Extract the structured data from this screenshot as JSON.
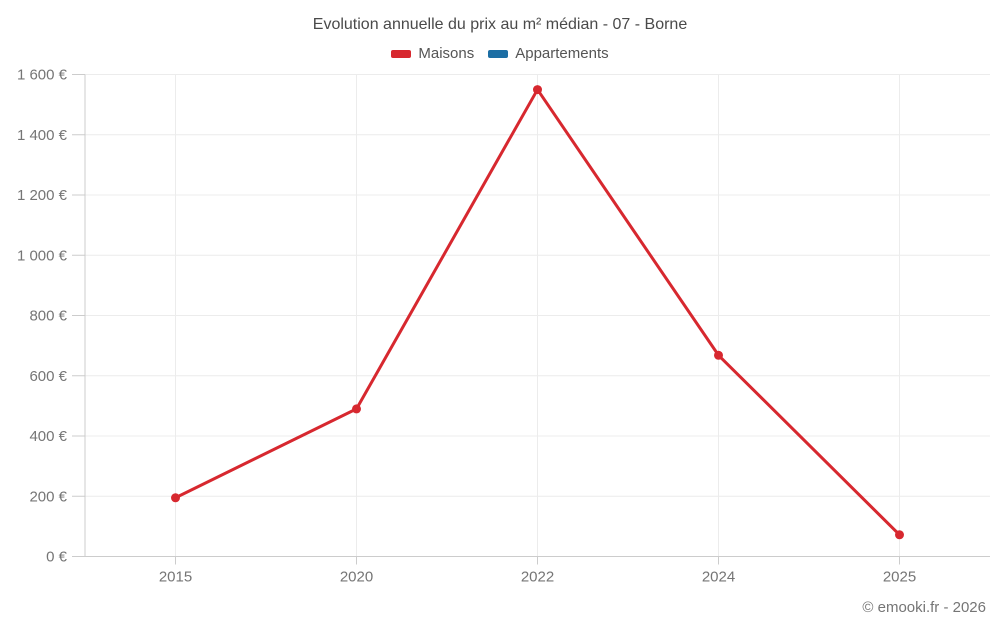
{
  "title": "Evolution annuelle du prix au m² médian - 07 - Borne",
  "legend": {
    "items": [
      {
        "label": "Maisons",
        "color": "#d7282f"
      },
      {
        "label": "Appartements",
        "color": "#1c6ea4"
      }
    ]
  },
  "copyright": "© emooki.fr - 2026",
  "colors": {
    "background": "#ffffff",
    "grid": "#ececec",
    "axis": "#cccccc",
    "tick_label": "#757575",
    "title": "#4a4a4a"
  },
  "chart_data": {
    "type": "line",
    "title": "Evolution annuelle du prix au m² médian - 07 - Borne",
    "categories": [
      "2015",
      "2020",
      "2022",
      "2024",
      "2025"
    ],
    "series": [
      {
        "name": "Maisons",
        "color": "#d7282f",
        "values": [
          195,
          490,
          1550,
          668,
          72
        ]
      },
      {
        "name": "Appartements",
        "color": "#1c6ea4",
        "values": []
      }
    ],
    "xlabel": "",
    "ylabel": "",
    "ylim": [
      0,
      1600
    ],
    "ytick_step": 200,
    "ytick_suffix": " €",
    "grid": true,
    "legend_position": "top",
    "marker": "circle"
  }
}
